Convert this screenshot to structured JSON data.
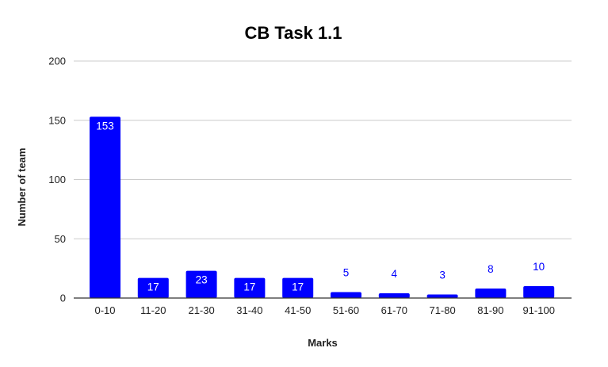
{
  "chart_data": {
    "type": "bar",
    "title": "CB Task 1.1",
    "xlabel": "Marks",
    "ylabel": "Number of team",
    "categories": [
      "0-10",
      "11-20",
      "21-30",
      "31-40",
      "41-50",
      "51-60",
      "61-70",
      "71-80",
      "81-90",
      "91-100"
    ],
    "values": [
      153,
      17,
      23,
      17,
      17,
      5,
      4,
      3,
      8,
      10
    ],
    "ylim": [
      0,
      200
    ],
    "yticks": [
      0,
      50,
      100,
      150,
      200
    ],
    "grid": true,
    "legend": "none",
    "bar_color": "#0000ff",
    "label_inside_color": "#ffffff",
    "label_outside_color": "#0000ff"
  }
}
